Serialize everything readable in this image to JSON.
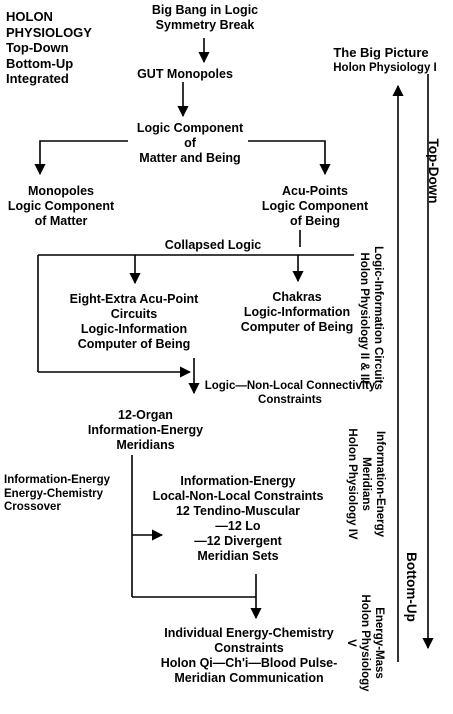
{
  "header": {
    "holon_title": "HOLON\nPHYSIOLOGY\nTop-Down\nBottom-Up\nIntegrated"
  },
  "nodes": {
    "big_bang": "Big Bang in Logic\nSymmetry Break",
    "gut": "GUT Monopoles",
    "logic_component": "Logic Component\nof\nMatter and Being",
    "monopoles": "Monopoles\nLogic Component\nof Matter",
    "acu_points": "Acu-Points\nLogic Component\nof Being",
    "collapsed_logic": "Collapsed Logic",
    "eight_extra": "Eight-Extra Acu-Point\nCircuits\nLogic-Information\nComputer of Being",
    "chakras": "Chakras\nLogic-Information\nComputer of Being",
    "nonlocal": "Logic—Non-Local Connectivity\nConstraints",
    "twelve_organ": "12-Organ\nInformation-Energy\nMeridians",
    "crossover": "Information-Energy\nEnergy-Chemistry\nCrossover",
    "info_energy_constraints": "Information-Energy\nLocal-Non-Local Constraints\n12 Tendino-Muscular\n—12 Lo\n—12 Divergent\nMeridian Sets",
    "individual": "Individual Energy-Chemistry\nConstraints\nHolon Qi—Ch'i—Blood Pulse-\nMeridian Communication"
  },
  "side": {
    "big_picture": "The Big Picture",
    "holon_physiology_1": "Holon Physiology I",
    "top_down": "Top-Down",
    "bottom_up": "Bottom-Up",
    "circuits": "Logic-Information Circuits\nHolon Physiology II & III",
    "meridians": "Information-Energy\nMeridians\nHolon Physiology IV",
    "energy_mass": "Energy-Mass\nHolon Physiology V"
  }
}
